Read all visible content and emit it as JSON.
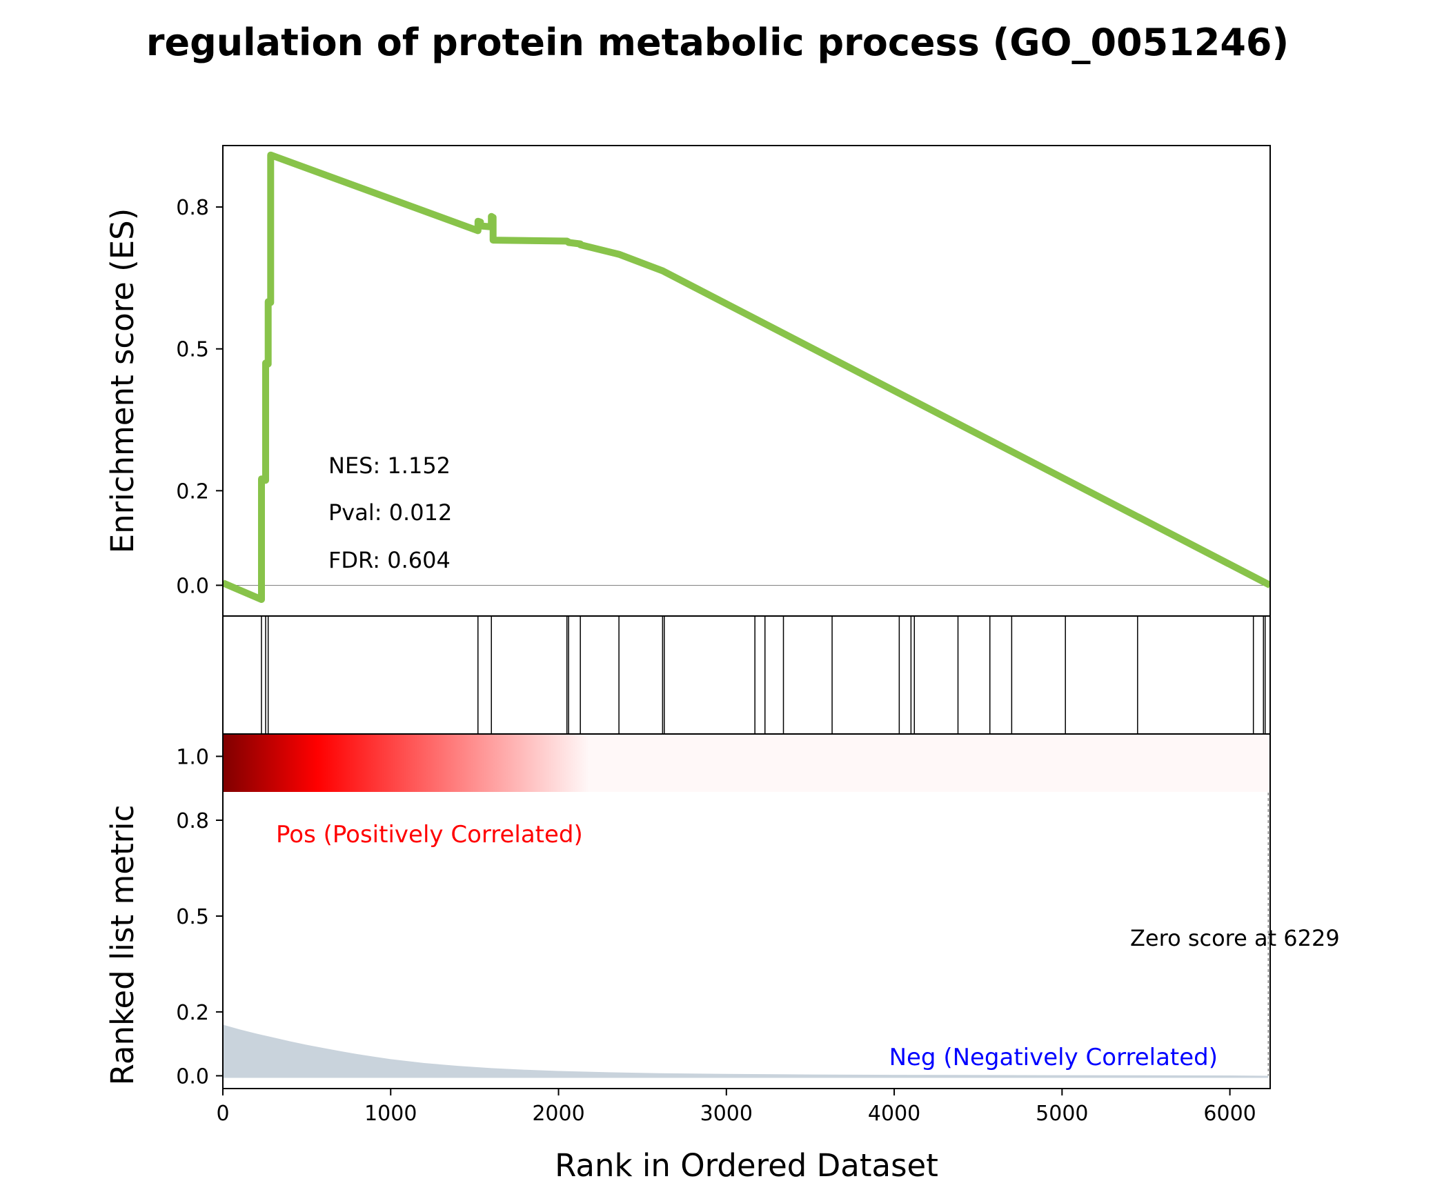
{
  "chart_data": {
    "type": "line",
    "title": "regulation of protein metabolic process (GO_0051246)",
    "colors": {
      "es_line": "#88c34a",
      "frame": "#000000",
      "zero_line": "#808080",
      "hits": "#000000",
      "metric_fill": "#c9d3dc",
      "pos_text": "#ff0000",
      "neg_text": "#0000ff",
      "gradient_dark": "#800000",
      "gradient_mid": "#ff0000",
      "gradient_light": "#fff8f8"
    },
    "es_panel": {
      "ylabel": "Enrichment score (ES)",
      "xlim": [
        0,
        6240
      ],
      "ylim": [
        -0.065,
        0.93
      ],
      "yticks": [
        0.0,
        0.2,
        0.5,
        0.8
      ],
      "ytick_labels": [
        "0.0",
        "0.2",
        "0.5",
        "0.8"
      ],
      "stats": [
        {
          "label": "NES: 1.152"
        },
        {
          "label": "Pval: 0.012"
        },
        {
          "label": "FDR: 0.604"
        }
      ],
      "es_curve": {
        "x": [
          0,
          230,
          230,
          255,
          255,
          270,
          270,
          285,
          285,
          1520,
          1520,
          1535,
          1535,
          1600,
          1600,
          1610,
          1610,
          2050,
          2050,
          2060,
          2060,
          2130,
          2130,
          2360,
          2360,
          2620,
          2620,
          6240
        ],
        "y": [
          0.005,
          -0.03,
          0.225,
          0.222,
          0.47,
          0.468,
          0.6,
          0.598,
          0.91,
          0.75,
          0.77,
          0.768,
          0.76,
          0.758,
          0.78,
          0.778,
          0.73,
          0.728,
          0.728,
          0.726,
          0.725,
          0.722,
          0.72,
          0.7,
          0.7,
          0.665,
          0.665,
          0.0
        ]
      }
    },
    "hits": [
      230,
      255,
      270,
      1520,
      1600,
      2050,
      2060,
      2130,
      2360,
      2620,
      2630,
      3170,
      3230,
      3340,
      3630,
      4030,
      4100,
      4120,
      4380,
      4570,
      4700,
      5020,
      5450,
      6140,
      6200,
      6210
    ],
    "metric_panel": {
      "ylabel": "Ranked list metric",
      "xlabel": "Rank in Ordered Dataset",
      "xlim": [
        0,
        6240
      ],
      "ylim": [
        -0.04,
        1.07
      ],
      "xticks": [
        0,
        1000,
        2000,
        3000,
        4000,
        5000,
        6000
      ],
      "xtick_labels": [
        "0",
        "1000",
        "2000",
        "3000",
        "4000",
        "5000",
        "6000"
      ],
      "yticks": [
        0.0,
        0.2,
        0.5,
        0.8,
        1.0
      ],
      "ytick_labels": [
        "0.0",
        "0.2",
        "0.5",
        "0.8",
        "1.0"
      ],
      "pos_label": "Pos (Positively Correlated)",
      "neg_label": "Neg (Negatively Correlated)",
      "zero_score_label": "Zero score at 6229",
      "zero_score_rank": 6229,
      "metric_curve": {
        "x": [
          0,
          100,
          200,
          300,
          400,
          500,
          600,
          700,
          800,
          900,
          1000,
          1200,
          1400,
          1600,
          1800,
          2000,
          2300,
          2600,
          3000,
          3500,
          4000,
          5000,
          6000,
          6229
        ],
        "y": [
          0.16,
          0.145,
          0.132,
          0.12,
          0.108,
          0.097,
          0.087,
          0.077,
          0.068,
          0.06,
          0.052,
          0.04,
          0.031,
          0.024,
          0.019,
          0.015,
          0.011,
          0.008,
          0.006,
          0.004,
          0.003,
          0.002,
          0.001,
          0.0
        ]
      }
    }
  }
}
